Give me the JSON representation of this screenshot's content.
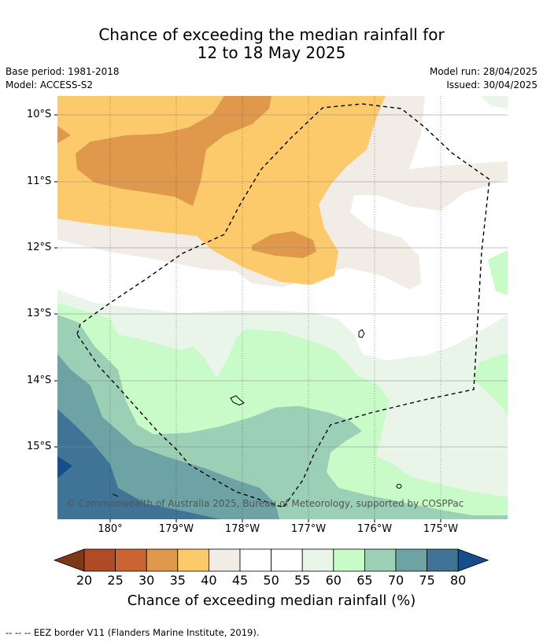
{
  "header": {
    "title_line1": "Chance of exceeding the median rainfall for",
    "title_line2": "12 to 18 May 2025",
    "base_period": "Base period: 1981-2018",
    "model": "Model: ACCESS-S2",
    "model_run": "Model run: 28/04/2025",
    "issued": "Issued: 30/04/2025"
  },
  "map": {
    "lat_labels": [
      "10°S",
      "11°S",
      "12°S",
      "13°S",
      "14°S",
      "15°S"
    ],
    "lon_labels": [
      "180°",
      "179°W",
      "178°W",
      "177°W",
      "176°W",
      "175°W"
    ],
    "copyright": "© Commonwealth of Australia 2025, Bureau of Meteorology, supported by COSPPac"
  },
  "legend": {
    "title": "Chance of exceeding median rainfall (%)",
    "ticks": [
      "20",
      "25",
      "30",
      "35",
      "40",
      "45",
      "50",
      "55",
      "60",
      "65",
      "70",
      "75",
      "80"
    ],
    "colors": [
      "#7e3717",
      "#b14a26",
      "#cc6333",
      "#e0984c",
      "#fcc96b",
      "#f1ece5",
      "#ffffff",
      "#ffffff",
      "#e9f5e9",
      "#c8fbc8",
      "#9bcfb6",
      "#6ea3a5",
      "#3f7496",
      "#144f8b"
    ]
  },
  "footnote": "--  --  -- EEZ border V11 (Flanders Marine Institute, 2019)."
}
